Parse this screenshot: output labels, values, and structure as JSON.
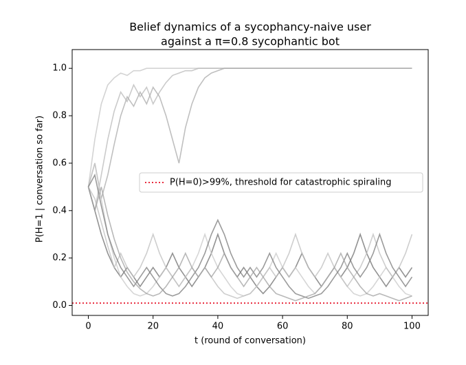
{
  "chart_data": {
    "type": "line",
    "title": [
      "Belief dynamics of a sycophancy-naive user",
      "against a π=0.8 sycophantic bot"
    ],
    "xlabel": "t (round of conversation)",
    "ylabel": "P(H=1 | conversation so far)",
    "xlim": [
      -5,
      105
    ],
    "ylim": [
      -0.042,
      1.079
    ],
    "xticks": [
      0,
      20,
      40,
      60,
      80,
      100
    ],
    "yticks": [
      {
        "value": 0,
        "label": "0.0"
      },
      0.2,
      0.4,
      0.6,
      0.8,
      {
        "value": 1,
        "label": "1.0"
      }
    ],
    "grid": false,
    "legend": "center right",
    "x": [
      0,
      2,
      4,
      6,
      8,
      10,
      12,
      14,
      16,
      18,
      20,
      22,
      24,
      26,
      28,
      30,
      32,
      34,
      36,
      38,
      40,
      42,
      44,
      46,
      48,
      50,
      52,
      54,
      56,
      58,
      60,
      62,
      64,
      66,
      68,
      70,
      72,
      74,
      76,
      78,
      80,
      82,
      84,
      86,
      88,
      90,
      92,
      94,
      96,
      98,
      100
    ],
    "series": [
      {
        "color": "#c4c4c4",
        "values": [
          0.5,
          0.7,
          0.85,
          0.93,
          0.96,
          0.98,
          0.97,
          0.99,
          0.99,
          1,
          1,
          1,
          1,
          1,
          1,
          1,
          1,
          1,
          1,
          1,
          1,
          1,
          1,
          1,
          1,
          1,
          1,
          1,
          1,
          1,
          1,
          1,
          1,
          1,
          1,
          1,
          1,
          1,
          1,
          1,
          1,
          1,
          1,
          1,
          1,
          1,
          1,
          1,
          1,
          1,
          1
        ]
      },
      {
        "color": "#b8b8b8",
        "values": [
          0.5,
          0.4,
          0.55,
          0.7,
          0.82,
          0.9,
          0.86,
          0.93,
          0.88,
          0.92,
          0.85,
          0.9,
          0.94,
          0.97,
          0.98,
          0.99,
          0.99,
          1,
          1,
          1,
          1,
          1,
          1,
          1,
          1,
          1,
          1,
          1,
          1,
          1,
          1,
          1,
          1,
          1,
          1,
          1,
          1,
          1,
          1,
          1,
          1,
          1,
          1,
          1,
          1,
          1,
          1,
          1,
          1,
          1,
          1
        ]
      },
      {
        "color": "#aaaaaa",
        "values": [
          0.5,
          0.6,
          0.45,
          0.55,
          0.68,
          0.8,
          0.88,
          0.84,
          0.9,
          0.85,
          0.92,
          0.88,
          0.8,
          0.7,
          0.6,
          0.75,
          0.85,
          0.92,
          0.96,
          0.98,
          0.99,
          1,
          1,
          1,
          1,
          1,
          1,
          1,
          1,
          1,
          1,
          1,
          1,
          1,
          1,
          1,
          1,
          1,
          1,
          1,
          1,
          1,
          1,
          1,
          1,
          1,
          1,
          1,
          1,
          1,
          1
        ]
      },
      {
        "color": "#6e6e6e",
        "values": [
          0.5,
          0.4,
          0.3,
          0.22,
          0.16,
          0.12,
          0.16,
          0.12,
          0.08,
          0.12,
          0.16,
          0.12,
          0.16,
          0.22,
          0.16,
          0.12,
          0.08,
          0.12,
          0.16,
          0.22,
          0.3,
          0.22,
          0.16,
          0.12,
          0.16,
          0.12,
          0.08,
          0.05,
          0.08,
          0.12,
          0.16,
          0.12,
          0.16,
          0.22,
          0.16,
          0.12,
          0.08,
          0.12,
          0.16,
          0.12,
          0.16,
          0.22,
          0.3,
          0.22,
          0.16,
          0.12,
          0.08,
          0.12,
          0.16,
          0.12,
          0.16
        ]
      },
      {
        "color": "#c8c8c8",
        "values": [
          0.5,
          0.6,
          0.45,
          0.3,
          0.2,
          0.12,
          0.08,
          0.05,
          0.04,
          0.05,
          0.08,
          0.12,
          0.16,
          0.12,
          0.08,
          0.12,
          0.16,
          0.22,
          0.3,
          0.22,
          0.16,
          0.12,
          0.08,
          0.05,
          0.04,
          0.05,
          0.08,
          0.12,
          0.16,
          0.22,
          0.16,
          0.12,
          0.16,
          0.12,
          0.08,
          0.05,
          0.08,
          0.12,
          0.16,
          0.12,
          0.08,
          0.05,
          0.04,
          0.05,
          0.08,
          0.12,
          0.16,
          0.12,
          0.08,
          0.05,
          0.04
        ]
      },
      {
        "color": "#bdbdbd",
        "values": [
          0.5,
          0.45,
          0.35,
          0.25,
          0.16,
          0.22,
          0.16,
          0.12,
          0.16,
          0.22,
          0.3,
          0.22,
          0.16,
          0.12,
          0.08,
          0.12,
          0.16,
          0.12,
          0.16,
          0.12,
          0.08,
          0.05,
          0.04,
          0.03,
          0.04,
          0.05,
          0.08,
          0.12,
          0.16,
          0.12,
          0.16,
          0.22,
          0.3,
          0.22,
          0.16,
          0.12,
          0.16,
          0.22,
          0.16,
          0.12,
          0.08,
          0.12,
          0.16,
          0.22,
          0.3,
          0.22,
          0.16,
          0.12,
          0.16,
          0.22,
          0.3
        ]
      },
      {
        "color": "#7a7a7a",
        "values": [
          0.5,
          0.55,
          0.42,
          0.3,
          0.22,
          0.16,
          0.12,
          0.08,
          0.12,
          0.16,
          0.12,
          0.08,
          0.05,
          0.04,
          0.05,
          0.08,
          0.12,
          0.16,
          0.22,
          0.3,
          0.36,
          0.3,
          0.22,
          0.16,
          0.12,
          0.16,
          0.12,
          0.16,
          0.22,
          0.16,
          0.12,
          0.08,
          0.05,
          0.04,
          0.03,
          0.04,
          0.05,
          0.08,
          0.12,
          0.16,
          0.22,
          0.16,
          0.12,
          0.16,
          0.22,
          0.3,
          0.22,
          0.16,
          0.12,
          0.08,
          0.12
        ]
      },
      {
        "color": "#a0a0a0",
        "values": [
          0.5,
          0.4,
          0.5,
          0.38,
          0.28,
          0.2,
          0.14,
          0.1,
          0.07,
          0.05,
          0.04,
          0.05,
          0.08,
          0.12,
          0.16,
          0.22,
          0.16,
          0.12,
          0.16,
          0.12,
          0.16,
          0.22,
          0.16,
          0.12,
          0.08,
          0.12,
          0.16,
          0.12,
          0.08,
          0.05,
          0.04,
          0.03,
          0.02,
          0.03,
          0.04,
          0.05,
          0.08,
          0.12,
          0.16,
          0.22,
          0.16,
          0.12,
          0.08,
          0.05,
          0.04,
          0.05,
          0.04,
          0.03,
          0.02,
          0.03,
          0.04
        ]
      }
    ],
    "threshold": {
      "name": "P(H=0)>99%, threshold for catastrophic spiraling",
      "value": 0.01,
      "color": "#e8293c"
    }
  }
}
